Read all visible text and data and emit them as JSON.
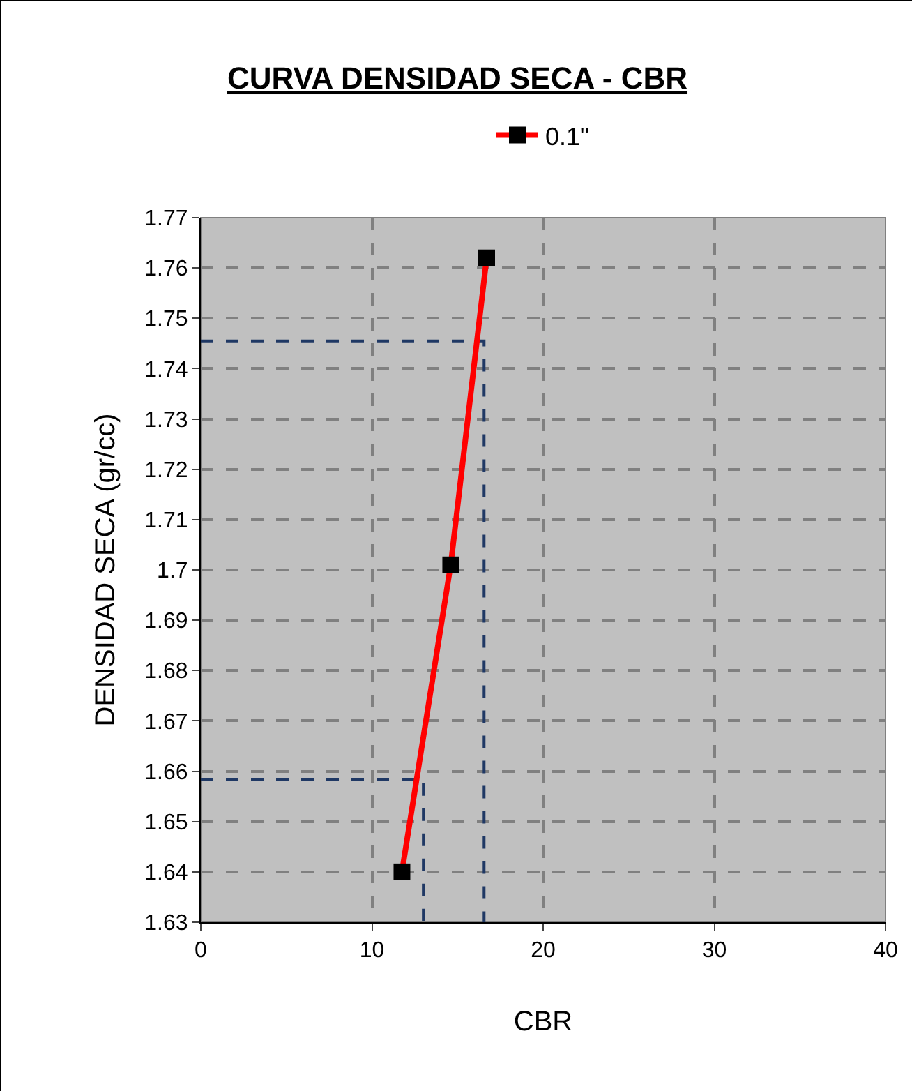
{
  "chart_data": {
    "type": "line",
    "title": "CURVA DENSIDAD SECA - CBR",
    "xlabel": "CBR",
    "ylabel": "DENSIDAD SECA (gr/cc)",
    "xlim": [
      0,
      40
    ],
    "xticks": [
      0,
      10,
      20,
      30,
      40
    ],
    "ylim": [
      1.63,
      1.77
    ],
    "yticks": [
      1.63,
      1.64,
      1.65,
      1.66,
      1.67,
      1.68,
      1.69,
      1.7,
      1.71,
      1.72,
      1.73,
      1.74,
      1.75,
      1.76,
      1.77
    ],
    "grid": true,
    "legend": "top",
    "marker": "square",
    "line_style": "solid",
    "series": [
      {
        "name": "0.1\"",
        "color": "#ff0000",
        "x": [
          11.75,
          14.6,
          16.7
        ],
        "values": [
          1.64,
          1.701,
          1.762
        ]
      },
      {
        "color": "#1f3864",
        "x": [
          0,
          16.55,
          16.55
        ],
        "values": [
          1.7455,
          1.7455,
          1.63
        ],
        "marker": "none",
        "line_style": "dashed"
      },
      {
        "color": "#1f3864",
        "x": [
          0,
          13,
          13
        ],
        "values": [
          1.6583,
          1.6583,
          1.63
        ],
        "marker": "none",
        "line_style": "dashed"
      }
    ]
  }
}
